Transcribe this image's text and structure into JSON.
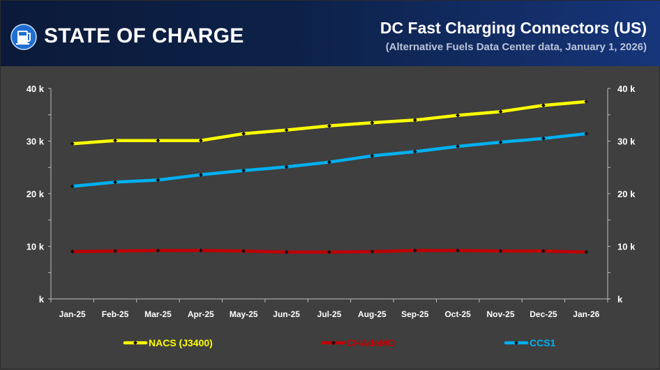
{
  "header": {
    "brand": "STATE OF CHARGE",
    "title": "DC Fast Charging Connectors (US)",
    "subtitle": "(Alternative Fuels Data Center data, January 1, 2026)"
  },
  "chart_data": {
    "type": "line",
    "title": "DC Fast Charging Connectors (US)",
    "categories": [
      "Jan-25",
      "Feb-25",
      "Mar-25",
      "Apr-25",
      "May-25",
      "Jun-25",
      "Jul-25",
      "Aug-25",
      "Sep-25",
      "Oct-25",
      "Nov-25",
      "Dec-25",
      "Jan-26"
    ],
    "ylim": [
      0,
      40000
    ],
    "yticks": [
      0,
      10000,
      20000,
      30000,
      40000
    ],
    "ytick_labels": [
      "k",
      "10 k",
      "20 k",
      "30 k",
      "40 k"
    ],
    "grid": false,
    "legend_position": "bottom",
    "series": [
      {
        "name": "NACS (J3400)",
        "color": "#ffff00",
        "values": [
          29500,
          30100,
          30100,
          30100,
          31400,
          32100,
          32900,
          33500,
          34000,
          34900,
          35600,
          36800,
          37500
        ]
      },
      {
        "name": "CHAdeMO",
        "color": "#c00000",
        "values": [
          9000,
          9100,
          9200,
          9200,
          9100,
          8900,
          8900,
          9000,
          9200,
          9200,
          9100,
          9100,
          8900
        ]
      },
      {
        "name": "CCS1",
        "color": "#00b0f0",
        "values": [
          21400,
          22200,
          22600,
          23600,
          24400,
          25100,
          26000,
          27200,
          28000,
          29000,
          29800,
          30500,
          31400
        ]
      }
    ]
  }
}
